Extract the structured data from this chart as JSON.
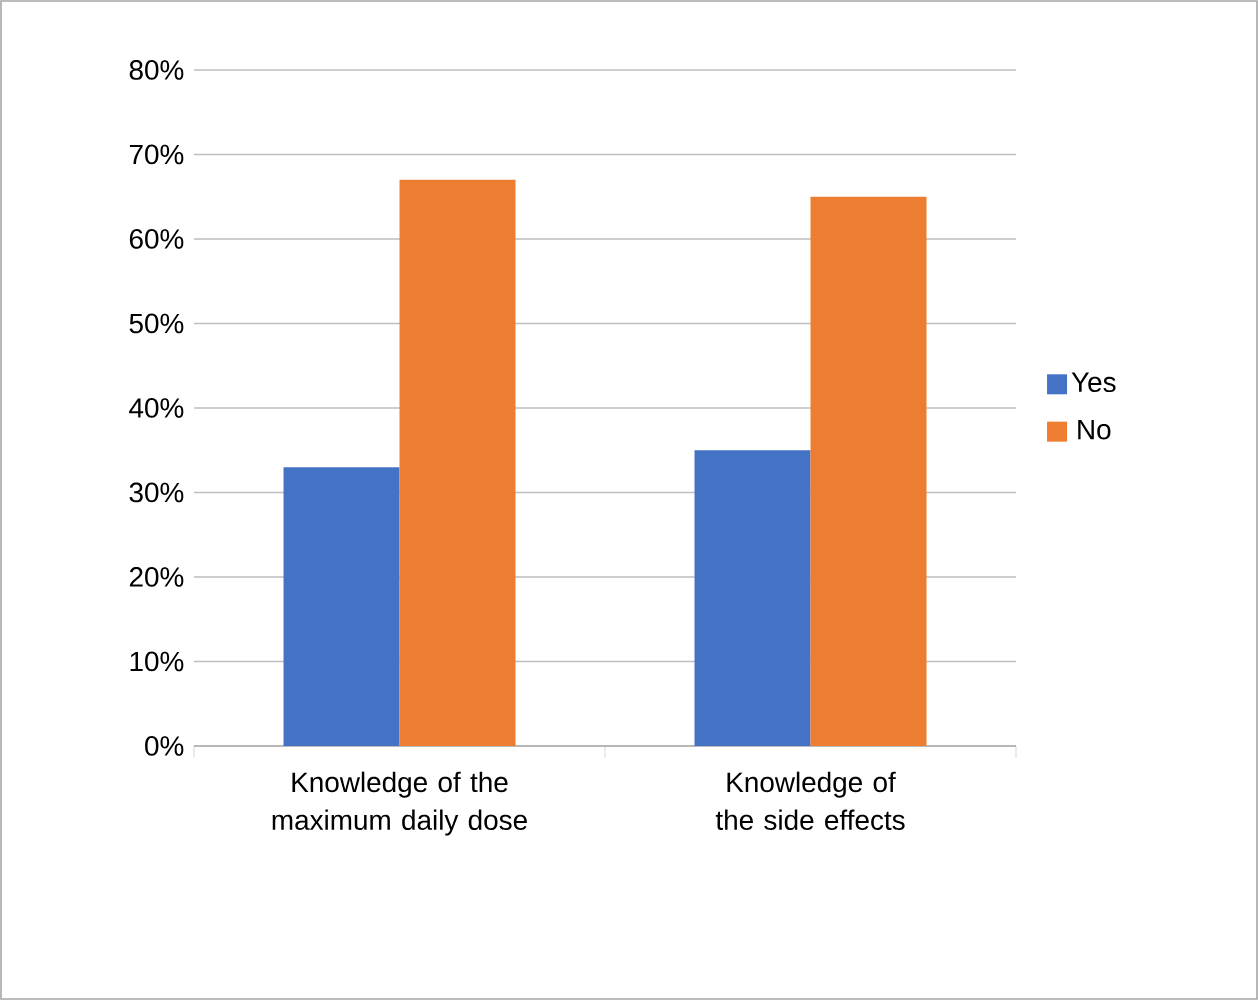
{
  "chart_data": {
    "type": "bar",
    "categories": [
      "Knowledge of the maximum daily dose",
      "Knowledge of the side effects"
    ],
    "series": [
      {
        "name": "Yes",
        "color": "#4472c4",
        "values": [
          33,
          35
        ]
      },
      {
        "name": "No",
        "color": "#ed7d31",
        "values": [
          67,
          65
        ]
      }
    ],
    "ylim": [
      0,
      80
    ],
    "yticks": [
      {
        "value": 0,
        "label": "0%"
      },
      {
        "value": 10,
        "label": "10%"
      },
      {
        "value": 20,
        "label": "20%"
      },
      {
        "value": 30,
        "label": "30%"
      },
      {
        "value": 40,
        "label": "40%"
      },
      {
        "value": 50,
        "label": "50%"
      },
      {
        "value": 60,
        "label": "60%"
      },
      {
        "value": 70,
        "label": "70%"
      },
      {
        "value": 80,
        "label": "80%"
      }
    ],
    "grid": "y",
    "legend": "right"
  }
}
